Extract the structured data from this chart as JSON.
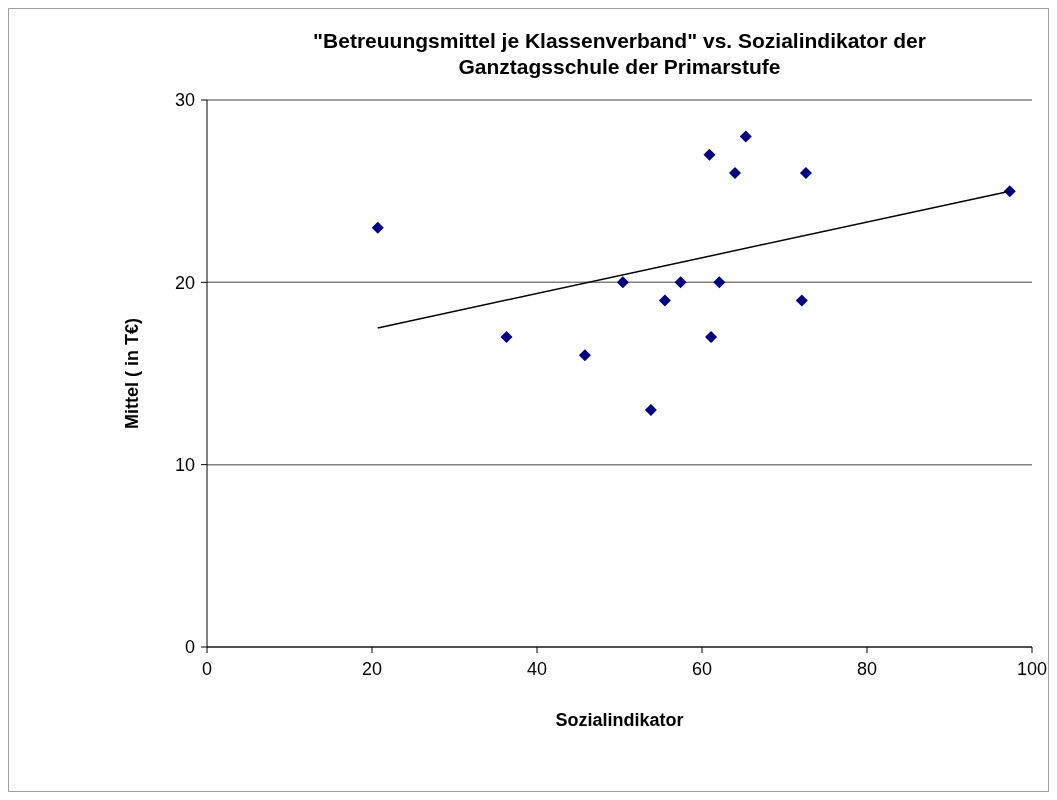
{
  "chart_data": {
    "type": "scatter",
    "title": "\"Betreuungsmittel je Klassenverband\" vs. Sozialindikator der Ganztagsschule der Primarstufe",
    "xlabel": "Sozialindikator",
    "ylabel": "Mittel ( in T€)",
    "xlim": [
      0,
      100
    ],
    "xticks": [
      0,
      20,
      40,
      60,
      80,
      100
    ],
    "ylim": [
      0,
      30
    ],
    "yticks": [
      0,
      10,
      20,
      30
    ],
    "grid": "y",
    "series": [
      {
        "color": "#000080",
        "marker": "diamond",
        "x": [
          20.7,
          36.3,
          45.8,
          50.4,
          53.8,
          55.5,
          57.4,
          60.9,
          61.1,
          62.1,
          64.0,
          65.3,
          72.1,
          72.6,
          97.3
        ],
        "values": [
          23,
          17,
          16,
          20,
          13,
          19,
          20,
          27,
          17,
          20,
          26,
          28,
          19,
          26,
          25
        ]
      },
      {
        "type": "line",
        "color": "#000000",
        "marker": "none",
        "line_style": "solid",
        "x": [
          20.7,
          97.3
        ],
        "values": [
          17.5,
          25
        ]
      }
    ]
  }
}
